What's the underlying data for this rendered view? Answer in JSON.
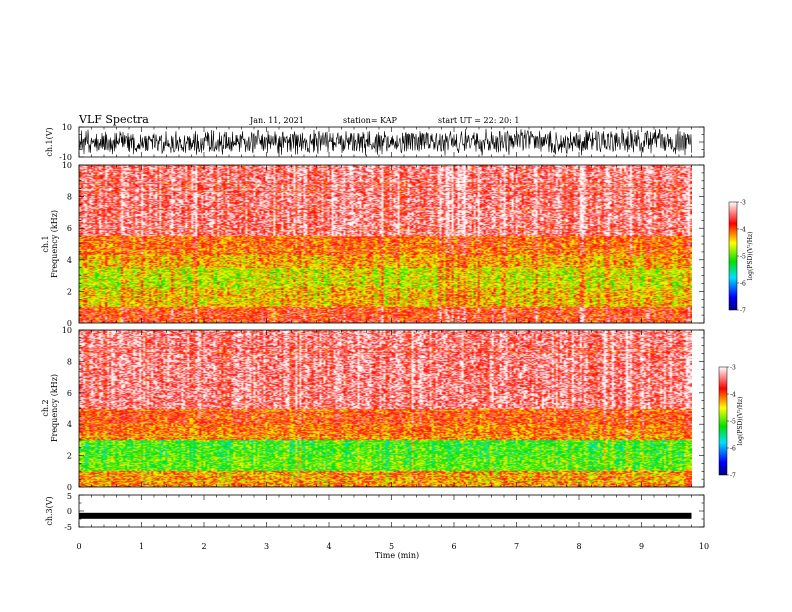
{
  "header": {
    "title": "VLF Spectra",
    "date": "Jan. 11, 2021",
    "station": "station= KAP",
    "start": "start  UT =   22: 20: 1"
  },
  "chart_data": [
    {
      "type": "line",
      "panel": "ch1-waveform",
      "ylabel": "ch.1(V)",
      "ylim": [
        -10,
        10
      ],
      "yticks": [
        "10",
        "-10"
      ],
      "xlim": [
        0,
        10
      ]
    },
    {
      "type": "heatmap",
      "panel": "ch1-spectrogram",
      "ylabel": "ch.1\nFrequency  (kHz)",
      "ylim": [
        0,
        10
      ],
      "yticks": [
        "0",
        "2",
        "4",
        "6",
        "8",
        "10"
      ],
      "data_end_min": 9.8,
      "bands": [
        {
          "from": 0,
          "to": 1.0,
          "level": -3.8
        },
        {
          "from": 1.0,
          "to": 2.2,
          "level": -4.4
        },
        {
          "from": 2.2,
          "to": 3.5,
          "level": -4.6
        },
        {
          "from": 3.5,
          "to": 4.2,
          "level": -4.3
        },
        {
          "from": 4.2,
          "to": 5.5,
          "level": -4.0
        },
        {
          "from": 5.5,
          "to": 10,
          "level": -3.4
        }
      ],
      "colorbar": {
        "label": "log(PSD)(V²/Hz)",
        "range": [
          -7,
          -3
        ],
        "ticks": [
          "-3",
          "-4",
          "-5",
          "-6",
          "-7"
        ]
      }
    },
    {
      "type": "heatmap",
      "panel": "ch2-spectrogram",
      "ylabel": "ch.2\nFrequency  (kHz)",
      "ylim": [
        0,
        10
      ],
      "yticks": [
        "0",
        "2",
        "4",
        "6",
        "8",
        "10"
      ],
      "data_end_min": 9.8,
      "bands": [
        {
          "from": 0,
          "to": 1.0,
          "level": -4.2
        },
        {
          "from": 1.0,
          "to": 2.0,
          "level": -5.0
        },
        {
          "from": 2.0,
          "to": 3.0,
          "level": -5.1
        },
        {
          "from": 3.0,
          "to": 4.0,
          "level": -4.1
        },
        {
          "from": 4.0,
          "to": 5.0,
          "level": -3.9
        },
        {
          "from": 5.0,
          "to": 10,
          "level": -3.4
        }
      ],
      "colorbar": {
        "label": "log(PSD)(V²/Hz)",
        "range": [
          -7,
          -3
        ],
        "ticks": [
          "-3",
          "-4",
          "-5",
          "-6",
          "-7"
        ]
      }
    },
    {
      "type": "line",
      "panel": "ch3-waveform",
      "ylabel": "ch.3(V)",
      "ylim": [
        -5,
        5
      ],
      "yticks": [
        "5",
        "0",
        "-5"
      ],
      "xlim": [
        0,
        10
      ],
      "offset": -1.5
    }
  ],
  "xaxis": {
    "label": "Time  (min)",
    "ticks": [
      "0",
      "1",
      "2",
      "3",
      "4",
      "5",
      "6",
      "7",
      "8",
      "9",
      "10"
    ]
  },
  "colors": {
    "axis": "#000000",
    "colormap": [
      "#00008b",
      "#0000ff",
      "#00d8ff",
      "#00e000",
      "#ffff00",
      "#ff0000",
      "#ffffff"
    ]
  }
}
